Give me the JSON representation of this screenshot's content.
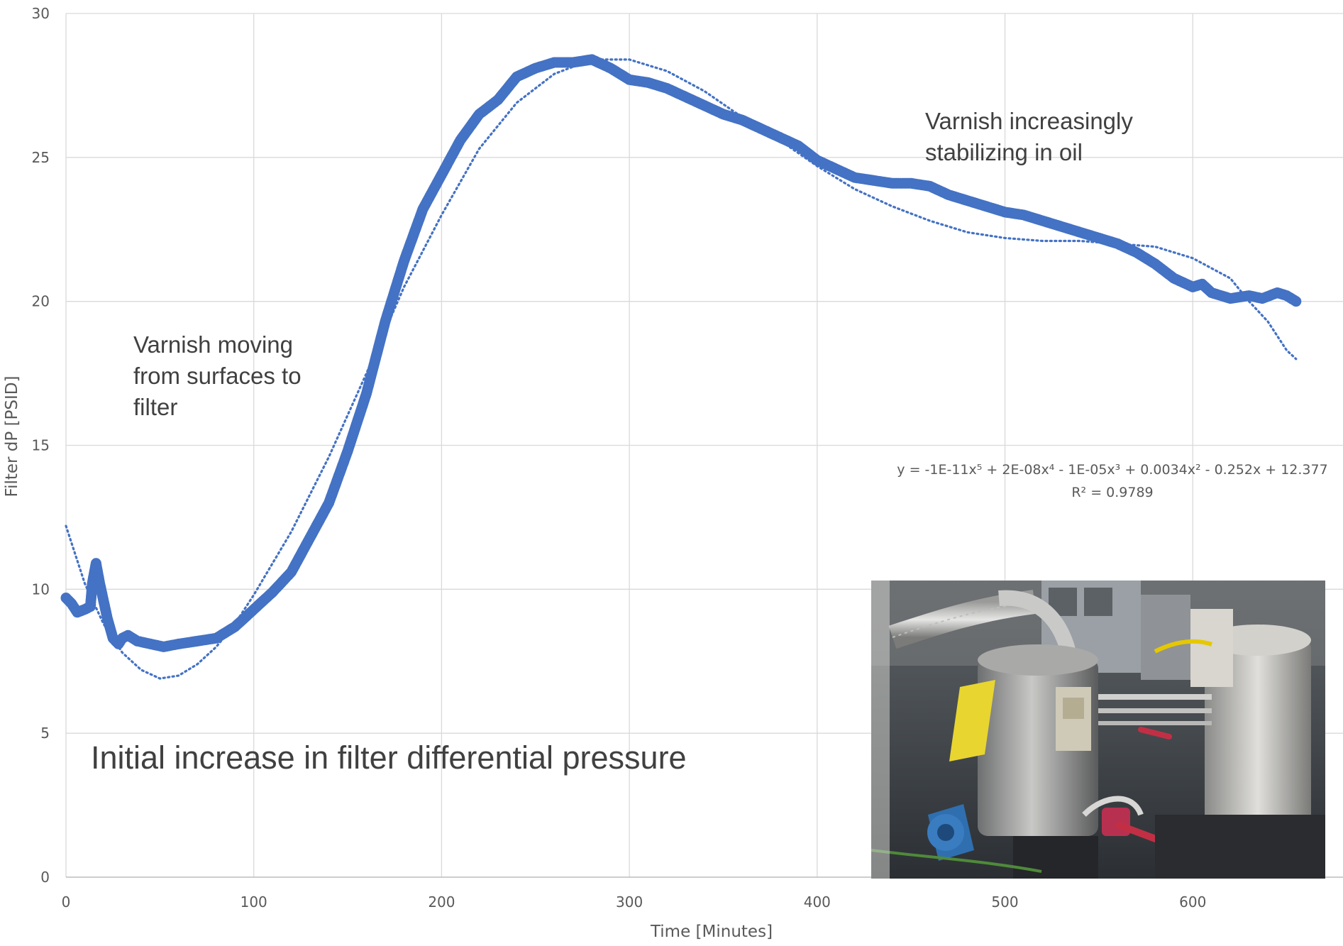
{
  "chart_data": {
    "type": "scatter",
    "xlabel": "Time [Minutes]",
    "ylabel": "Filter dP [PSID]",
    "xlim": [
      0,
      680
    ],
    "ylim": [
      0,
      30
    ],
    "x_ticks": [
      0,
      100,
      200,
      300,
      400,
      500,
      600
    ],
    "y_ticks": [
      0,
      5,
      10,
      15,
      20,
      25,
      30
    ],
    "grid": true,
    "legend": "none",
    "series": [
      {
        "type": "scatter",
        "color": "#4472C4",
        "points": [
          [
            0,
            9.7
          ],
          [
            3,
            9.5
          ],
          [
            6,
            9.2
          ],
          [
            10,
            9.3
          ],
          [
            13,
            9.4
          ],
          [
            14,
            10.2
          ],
          [
            16,
            10.9
          ],
          [
            18,
            10.2
          ],
          [
            20,
            9.6
          ],
          [
            22,
            9.0
          ],
          [
            25,
            8.3
          ],
          [
            28,
            8.1
          ],
          [
            30,
            8.3
          ],
          [
            33,
            8.4
          ],
          [
            38,
            8.2
          ],
          [
            45,
            8.1
          ],
          [
            52,
            8.0
          ],
          [
            60,
            8.1
          ],
          [
            70,
            8.2
          ],
          [
            80,
            8.3
          ],
          [
            90,
            8.7
          ],
          [
            100,
            9.3
          ],
          [
            110,
            9.9
          ],
          [
            120,
            10.6
          ],
          [
            130,
            11.8
          ],
          [
            140,
            13.0
          ],
          [
            150,
            14.8
          ],
          [
            160,
            16.8
          ],
          [
            170,
            19.3
          ],
          [
            180,
            21.4
          ],
          [
            190,
            23.2
          ],
          [
            200,
            24.4
          ],
          [
            210,
            25.6
          ],
          [
            220,
            26.5
          ],
          [
            230,
            27.0
          ],
          [
            240,
            27.8
          ],
          [
            250,
            28.1
          ],
          [
            260,
            28.3
          ],
          [
            270,
            28.3
          ],
          [
            280,
            28.4
          ],
          [
            290,
            28.1
          ],
          [
            300,
            27.7
          ],
          [
            310,
            27.6
          ],
          [
            320,
            27.4
          ],
          [
            330,
            27.1
          ],
          [
            340,
            26.8
          ],
          [
            350,
            26.5
          ],
          [
            360,
            26.3
          ],
          [
            370,
            26.0
          ],
          [
            380,
            25.7
          ],
          [
            390,
            25.4
          ],
          [
            400,
            24.9
          ],
          [
            410,
            24.6
          ],
          [
            420,
            24.3
          ],
          [
            430,
            24.2
          ],
          [
            440,
            24.1
          ],
          [
            450,
            24.1
          ],
          [
            460,
            24.0
          ],
          [
            470,
            23.7
          ],
          [
            480,
            23.5
          ],
          [
            490,
            23.3
          ],
          [
            500,
            23.1
          ],
          [
            510,
            23.0
          ],
          [
            520,
            22.8
          ],
          [
            530,
            22.6
          ],
          [
            540,
            22.4
          ],
          [
            550,
            22.2
          ],
          [
            560,
            22.0
          ],
          [
            570,
            21.7
          ],
          [
            580,
            21.3
          ],
          [
            590,
            20.8
          ],
          [
            600,
            20.5
          ],
          [
            605,
            20.6
          ],
          [
            610,
            20.3
          ],
          [
            620,
            20.1
          ],
          [
            630,
            20.2
          ],
          [
            637,
            20.1
          ],
          [
            645,
            20.3
          ],
          [
            650,
            20.2
          ],
          [
            655,
            20.0
          ]
        ]
      },
      {
        "type": "trendline-polynomial",
        "style": "dotted",
        "color": "#4472C4",
        "x_range": [
          0,
          655
        ],
        "points": [
          [
            0,
            12.2
          ],
          [
            10,
            10.2
          ],
          [
            20,
            8.8
          ],
          [
            30,
            7.8
          ],
          [
            40,
            7.2
          ],
          [
            50,
            6.9
          ],
          [
            60,
            7.0
          ],
          [
            70,
            7.4
          ],
          [
            80,
            8.0
          ],
          [
            90,
            8.8
          ],
          [
            100,
            9.8
          ],
          [
            120,
            12.0
          ],
          [
            140,
            14.6
          ],
          [
            160,
            17.5
          ],
          [
            180,
            20.5
          ],
          [
            200,
            23.0
          ],
          [
            220,
            25.3
          ],
          [
            240,
            26.9
          ],
          [
            260,
            27.9
          ],
          [
            280,
            28.4
          ],
          [
            300,
            28.4
          ],
          [
            320,
            28.0
          ],
          [
            340,
            27.3
          ],
          [
            360,
            26.4
          ],
          [
            380,
            25.6
          ],
          [
            400,
            24.7
          ],
          [
            420,
            23.9
          ],
          [
            440,
            23.3
          ],
          [
            460,
            22.8
          ],
          [
            480,
            22.4
          ],
          [
            500,
            22.2
          ],
          [
            520,
            22.1
          ],
          [
            540,
            22.1
          ],
          [
            560,
            22.0
          ],
          [
            580,
            21.9
          ],
          [
            600,
            21.5
          ],
          [
            620,
            20.8
          ],
          [
            630,
            20.0
          ],
          [
            640,
            19.3
          ],
          [
            650,
            18.3
          ],
          [
            655,
            18.0
          ]
        ]
      }
    ],
    "annotations": {
      "left_note": [
        "Varnish moving",
        "from surfaces to",
        "filter"
      ],
      "right_note": [
        "Varnish increasingly",
        "stabilizing in oil"
      ],
      "headline": "Initial increase in filter differential pressure",
      "equation": "y = -1E-11x⁵ + 2E-08x⁴ - 1E-05x³ + 0.0034x² - 0.252x + 12.377",
      "r_squared": "R² = 0.9789"
    }
  }
}
